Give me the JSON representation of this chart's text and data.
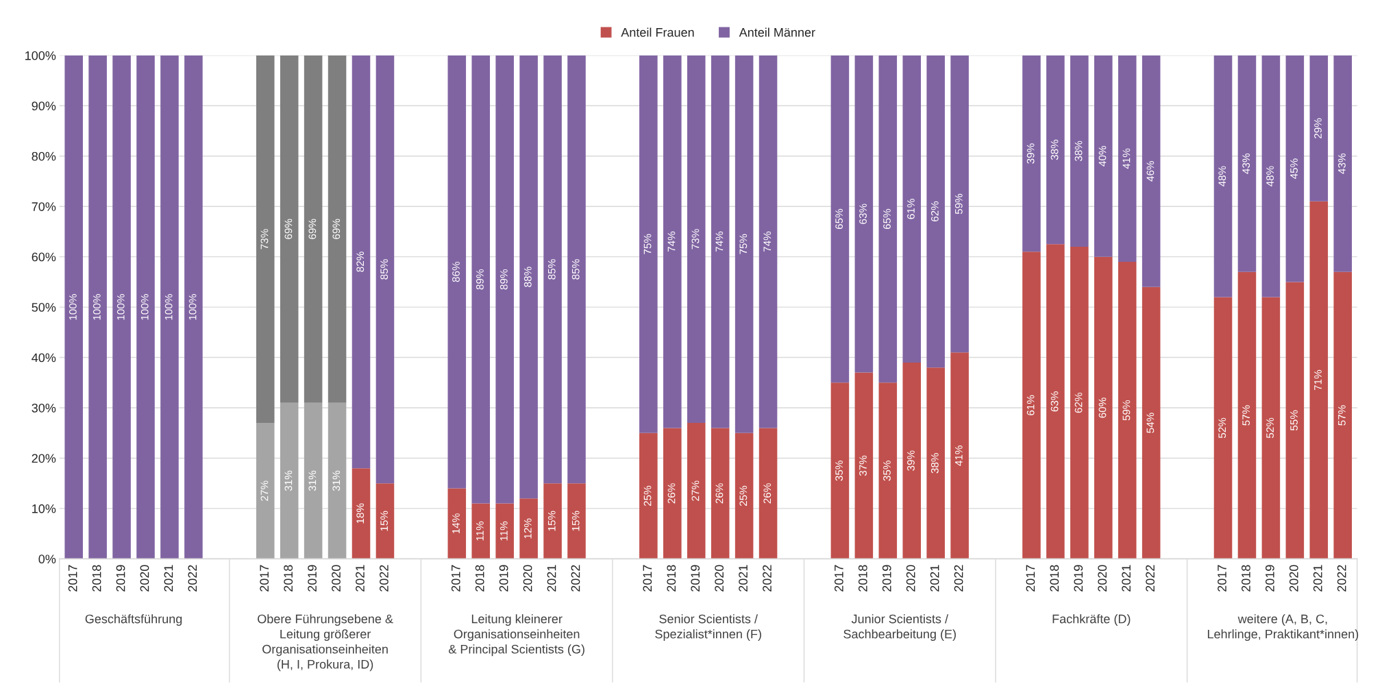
{
  "chart_data": {
    "type": "bar",
    "stacked": true,
    "legend": "top",
    "grid": "y",
    "categories": [
      "2017",
      "2018",
      "2019",
      "2020",
      "2021",
      "2022",
      null,
      null,
      "2017",
      "2018",
      "2019",
      "2020",
      "2021",
      "2022",
      null,
      null,
      "2017",
      "2018",
      "2019",
      "2020",
      "2021",
      "2022",
      null,
      null,
      "2017",
      "2018",
      "2019",
      "2020",
      "2021",
      "2022",
      null,
      null,
      "2017",
      "2018",
      "2019",
      "2020",
      "2021",
      "2022",
      null,
      null,
      "2017",
      "2018",
      "2019",
      "2020",
      "2021",
      "2022",
      null,
      null,
      "2017",
      "2018",
      "2019",
      "2020",
      "2021",
      "2022"
    ],
    "ylim": [
      0,
      100
    ],
    "yticks": [
      {
        "value": 0,
        "label": "0%"
      },
      {
        "value": 10,
        "label": "10%"
      },
      {
        "value": 20,
        "label": "20%"
      },
      {
        "value": 30,
        "label": "30%"
      },
      {
        "value": 40,
        "label": "40%"
      },
      {
        "value": 50,
        "label": "50%"
      },
      {
        "value": 60,
        "label": "60%"
      },
      {
        "value": 70,
        "label": "70%"
      },
      {
        "value": 80,
        "label": "80%"
      },
      {
        "value": 90,
        "label": "90%"
      },
      {
        "value": 100,
        "label": "100%"
      }
    ],
    "series": [
      {
        "name": "Anteil Frauen",
        "color": "#c0504d",
        "colors": [
          "#c0504d",
          "#c0504d",
          "#c0504d",
          "#c0504d",
          "#c0504d",
          "#c0504d",
          null,
          null,
          "#a5a5a5",
          "#a5a5a5",
          "#a5a5a5",
          "#a5a5a5",
          "#c0504d",
          "#c0504d",
          null,
          null,
          "#c0504d",
          "#c0504d",
          "#c0504d",
          "#c0504d",
          "#c0504d",
          "#c0504d",
          null,
          null,
          "#c0504d",
          "#c0504d",
          "#c0504d",
          "#c0504d",
          "#c0504d",
          "#c0504d",
          null,
          null,
          "#c0504d",
          "#c0504d",
          "#c0504d",
          "#c0504d",
          "#c0504d",
          "#c0504d",
          null,
          null,
          "#c0504d",
          "#c0504d",
          "#c0504d",
          "#c0504d",
          "#c0504d",
          "#c0504d",
          null,
          null,
          "#c0504d",
          "#c0504d",
          "#c0504d",
          "#c0504d",
          "#c0504d",
          "#c0504d"
        ],
        "values": [
          0,
          0,
          0,
          0,
          0,
          0,
          null,
          null,
          27,
          31,
          31,
          31,
          18,
          15,
          null,
          null,
          14,
          11,
          11,
          12,
          15,
          15,
          null,
          null,
          25,
          26,
          27,
          26,
          25,
          26,
          null,
          null,
          35,
          37,
          35,
          39,
          38,
          41,
          null,
          null,
          61,
          62.5,
          62,
          60,
          59,
          54,
          null,
          null,
          52,
          57,
          52,
          55,
          71,
          57
        ],
        "value_labels": [
          null,
          null,
          null,
          null,
          null,
          null,
          null,
          null,
          "27%",
          "31%",
          "31%",
          "31%",
          "18%",
          "15%",
          null,
          null,
          "14%",
          "11%",
          "11%",
          "12%",
          "15%",
          "15%",
          null,
          null,
          "25%",
          "26%",
          "27%",
          "26%",
          "25%",
          "26%",
          null,
          null,
          "35%",
          "37%",
          "35%",
          "39%",
          "38%",
          "41%",
          null,
          null,
          "61%",
          "63%",
          "62%",
          "60%",
          "59%",
          "54%",
          null,
          null,
          "52%",
          "57%",
          "52%",
          "55%",
          "71%",
          "57%"
        ]
      },
      {
        "name": "Anteil Männer",
        "color": "#8064a2",
        "colors": [
          "#8064a2",
          "#8064a2",
          "#8064a2",
          "#8064a2",
          "#8064a2",
          "#8064a2",
          null,
          null,
          "#7f7f7f",
          "#7f7f7f",
          "#7f7f7f",
          "#7f7f7f",
          "#8064a2",
          "#8064a2",
          null,
          null,
          "#8064a2",
          "#8064a2",
          "#8064a2",
          "#8064a2",
          "#8064a2",
          "#8064a2",
          null,
          null,
          "#8064a2",
          "#8064a2",
          "#8064a2",
          "#8064a2",
          "#8064a2",
          "#8064a2",
          null,
          null,
          "#8064a2",
          "#8064a2",
          "#8064a2",
          "#8064a2",
          "#8064a2",
          "#8064a2",
          null,
          null,
          "#8064a2",
          "#8064a2",
          "#8064a2",
          "#8064a2",
          "#8064a2",
          "#8064a2",
          null,
          null,
          "#8064a2",
          "#8064a2",
          "#8064a2",
          "#8064a2",
          "#8064a2",
          "#8064a2"
        ],
        "values": [
          100,
          100,
          100,
          100,
          100,
          100,
          null,
          null,
          73,
          69,
          69,
          69,
          82,
          85,
          null,
          null,
          86,
          89,
          89,
          88,
          85,
          85,
          null,
          null,
          75,
          74,
          73,
          74,
          75,
          74,
          null,
          null,
          65,
          63,
          65,
          61,
          62,
          59,
          null,
          null,
          39,
          37.5,
          38,
          40,
          41,
          46,
          null,
          null,
          48,
          43,
          48,
          45,
          29,
          43
        ],
        "value_labels": [
          "100%",
          "100%",
          "100%",
          "100%",
          "100%",
          "100%",
          null,
          null,
          "73%",
          "69%",
          "69%",
          "69%",
          "82%",
          "85%",
          null,
          null,
          "86%",
          "89%",
          "89%",
          "88%",
          "85%",
          "85%",
          null,
          null,
          "75%",
          "74%",
          "73%",
          "74%",
          "75%",
          "74%",
          null,
          null,
          "65%",
          "63%",
          "65%",
          "61%",
          "62%",
          "59%",
          null,
          null,
          "39%",
          "38%",
          "38%",
          "40%",
          "41%",
          "46%",
          null,
          null,
          "48%",
          "43%",
          "48%",
          "45%",
          "29%",
          "43%"
        ]
      }
    ],
    "annotations": [
      "Geschäftsführung",
      "Obere Führungsebene &\nLeitung größerer\nOrganisationseinheiten\n(H, I, Prokura, ID)",
      "Leitung kleinerer\nOrganisationseinheiten\n& Principal Scientists (G)",
      "Senior Scientists /\nSpezialist*innen (F)",
      "Junior Scientists /\nSachbearbeitung (E)",
      "Fachkräfte (D)",
      "weitere (A, B, C,\nLehrlinge, Praktikant*innen)"
    ]
  }
}
